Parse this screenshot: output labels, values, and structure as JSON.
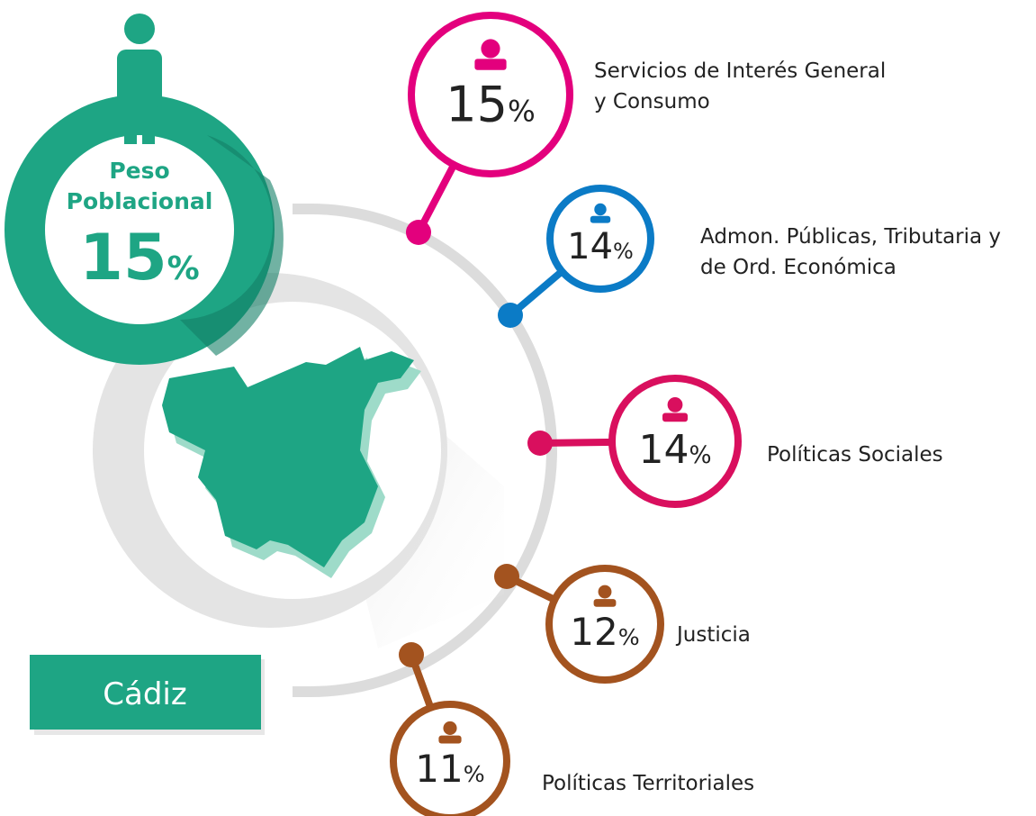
{
  "peso": {
    "title_lines": [
      "Peso",
      "Poblacional"
    ],
    "value": 15,
    "unit": "%"
  },
  "province": "Cádiz",
  "items": [
    {
      "label": [
        "Servicios de Interés General",
        "y Consumo"
      ],
      "value": 15,
      "unit": "%",
      "color": "#e3007d"
    },
    {
      "label": [
        "Admon. Públicas, Tributaria y",
        "de Ord. Económica"
      ],
      "value": 14,
      "unit": "%",
      "color": "#0b7bc6"
    },
    {
      "label": [
        "Políticas Sociales"
      ],
      "value": 14,
      "unit": "%",
      "color": "#d90f5e"
    },
    {
      "label": [
        "Justicia"
      ],
      "value": 12,
      "unit": "%",
      "color": "#a3531f"
    },
    {
      "label": [
        "Políticas Territoriales"
      ],
      "value": 11,
      "unit": "%",
      "color": "#a3531f"
    }
  ]
}
